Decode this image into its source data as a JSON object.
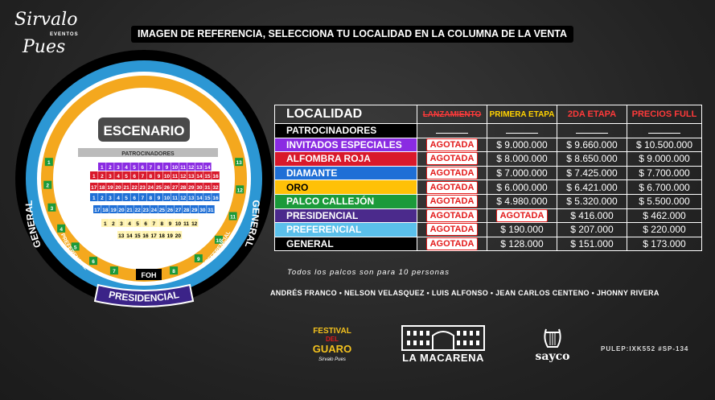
{
  "logo": {
    "line1": "Sirvalo",
    "line2": "EVENTOS",
    "line3": "Pues"
  },
  "banner": "IMAGEN DE REFERENCIA, SELECCIONA TU LOCALIDAD EN LA COLUMNA DE LA VENTA",
  "map": {
    "stage": "ESCENARIO",
    "sponsors": "PATROCINADORES",
    "general_left": "GENERAL",
    "general_right": "GENERAL",
    "preferencial_left": "PREFERENCIAL",
    "preferencial_right": "PREFERENCIAL",
    "presidencial": "PRESIDENCIAL",
    "foh": "FOH",
    "rows": [
      {
        "color": "#8a2be2",
        "nums": [
          "1",
          "2",
          "3",
          "4",
          "5",
          "6",
          "7",
          "8",
          "9",
          "10",
          "11",
          "12",
          "13",
          "14"
        ]
      },
      {
        "color": "#d9192b",
        "nums": [
          "1",
          "2",
          "3",
          "4",
          "5",
          "6",
          "7",
          "8",
          "9",
          "10",
          "11",
          "12",
          "13",
          "14",
          "15",
          "16"
        ]
      },
      {
        "color": "#d9192b",
        "nums": [
          "17",
          "18",
          "19",
          "20",
          "21",
          "22",
          "23",
          "24",
          "25",
          "26",
          "27",
          "28",
          "29",
          "30",
          "31",
          "32"
        ]
      },
      {
        "color": "#1f6fd6",
        "nums": [
          "1",
          "2",
          "3",
          "4",
          "5",
          "6",
          "7",
          "8",
          "9",
          "10",
          "11",
          "12",
          "13",
          "14",
          "15",
          "16"
        ]
      },
      {
        "color": "#1f6fd6",
        "nums": [
          "17",
          "18",
          "19",
          "20",
          "21",
          "22",
          "23",
          "24",
          "25",
          "26",
          "27",
          "28",
          "29",
          "30",
          "31"
        ]
      },
      {
        "color": "#ffc107",
        "nums": [
          "1",
          "2",
          "3",
          "4",
          "5",
          "6",
          "7",
          "8",
          "9",
          "10",
          "11",
          "12"
        ]
      },
      {
        "color": "#ffc107",
        "nums": [
          "13",
          "14",
          "15",
          "16",
          "17",
          "18",
          "19",
          "20"
        ]
      }
    ],
    "callejon_left": [
      "1",
      "2",
      "3",
      "4",
      "5",
      "6",
      "7"
    ],
    "callejon_right": [
      "13",
      "12",
      "11",
      "10",
      "9",
      "8"
    ]
  },
  "table": {
    "headers": {
      "localidad": "LOCALIDAD",
      "lanzamiento": "LANZAMIENTO",
      "primera": "PRIMERA ETAPA",
      "segunda": "2DA ETAPA",
      "full": "PRECIOS FULL"
    },
    "sold_out": "AGOTADA",
    "rows": [
      {
        "name": "PATROCINADORES",
        "color": "#000000",
        "cells": [
          "-",
          "-",
          "-",
          "-"
        ]
      },
      {
        "name": "INVITADOS ESPECIALES",
        "color": "#8a2be2",
        "cells": [
          "A",
          "$ 9.000.000",
          "$ 9.660.000",
          "$ 10.500.000"
        ]
      },
      {
        "name": "ALFOMBRA ROJA",
        "color": "#d9192b",
        "cells": [
          "A",
          "$ 8.000.000",
          "$ 8.650.000",
          "$ 9.000.000"
        ]
      },
      {
        "name": "DIAMANTE",
        "color": "#1f6fd6",
        "cells": [
          "A",
          "$ 7.000.000",
          "$ 7.425.000",
          "$ 7.700.000"
        ]
      },
      {
        "name": "ORO",
        "color": "#ffc107",
        "cells": [
          "A",
          "$ 6.000.000",
          "$ 6.421.000",
          "$ 6.700.000"
        ]
      },
      {
        "name": "PALCO CALLEJÓN",
        "color": "#1b9a3a",
        "cells": [
          "A",
          "$ 4.980.000",
          "$ 5.320.000",
          "$ 5.500.000"
        ]
      },
      {
        "name": "PRESIDENCIAL",
        "color": "#4b2a8c",
        "cells": [
          "A",
          "A",
          "$ 416.000",
          "$ 462.000"
        ]
      },
      {
        "name": "PREFERENCIAL",
        "color": "#5bc0eb",
        "cells": [
          "A",
          "$ 190.000",
          "$ 207.000",
          "$ 220.000"
        ]
      },
      {
        "name": "GENERAL",
        "color": "#000000",
        "cells": [
          "A",
          "$ 128.000",
          "$ 151.000",
          "$ 173.000"
        ]
      }
    ]
  },
  "note": "Todos los palcos son para 10 personas",
  "artists": "ANDRÉS FRANCO • NELSON VELASQUEZ • LUIS ALFONSO • JEAN CARLOS CENTENO • JHONNY RIVERA",
  "sponsors_logos": {
    "festival_line1": "FESTIVAL",
    "festival_line2": "DEL",
    "festival_line3": "GUARO",
    "festival_line4": "Sirvalo Pues",
    "macarena": "LA MACARENA",
    "sayco": "sayco"
  },
  "pulep": "PULEP:IXK552 #SP-134"
}
